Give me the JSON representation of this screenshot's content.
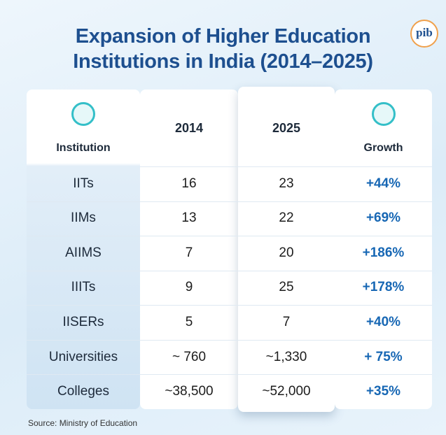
{
  "header": {
    "title_lines": [
      "Expansion of Higher Education",
      "Institutions in India (2014–2025)"
    ],
    "logo": "pib"
  },
  "table": {
    "columns": [
      "Institution",
      "2014",
      "2025",
      "Growth"
    ],
    "rows": [
      [
        "IITs",
        "16",
        "23",
        "+44%"
      ],
      [
        "IIMs",
        "13",
        "22",
        "+69%"
      ],
      [
        "AIIMS",
        "7",
        "20",
        "+186%"
      ],
      [
        "IIITs",
        "9",
        "25",
        "+178%"
      ],
      [
        "IISERs",
        "5",
        "7",
        "+40%"
      ],
      [
        "Universities",
        "~ 760",
        "~1,330",
        "+ 75%"
      ],
      [
        "Colleges",
        "~38,500",
        "~52,000",
        "+35%"
      ]
    ]
  },
  "footer": {
    "source": "Source: Ministry of Education"
  }
}
